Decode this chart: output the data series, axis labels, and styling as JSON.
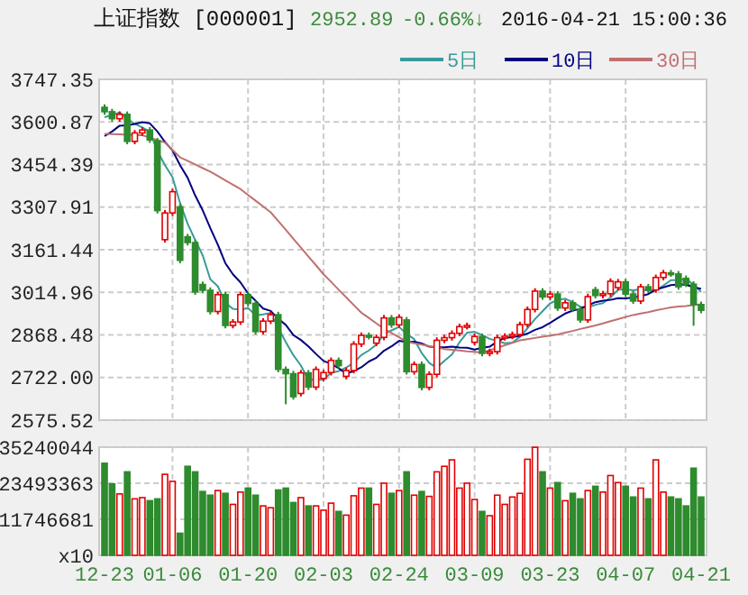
{
  "chart_data": [
    {
      "type": "candlestick",
      "title": "上证指数 [000001]",
      "annotations": [
        "2952.89",
        "-0.66%↓",
        "2016-04-21 15:00:36"
      ],
      "ohlc": [
        [
          3651,
          3661,
          3626,
          3636
        ],
        [
          3636,
          3646,
          3602,
          3612
        ],
        [
          3612,
          3637,
          3602,
          3627
        ],
        [
          3627,
          3637,
          3524,
          3534
        ],
        [
          3534,
          3573,
          3524,
          3563
        ],
        [
          3563,
          3583,
          3553,
          3573
        ],
        [
          3573,
          3583,
          3529,
          3539
        ],
        [
          3536,
          3546,
          3286,
          3296
        ],
        [
          3196,
          3298,
          3186,
          3288
        ],
        [
          3288,
          3371,
          3278,
          3361
        ],
        [
          3309,
          3319,
          3115,
          3125
        ],
        [
          3206,
          3216,
          3176,
          3186
        ],
        [
          3186,
          3196,
          3006,
          3016
        ],
        [
          3042,
          3052,
          3012,
          3022
        ],
        [
          3022,
          3032,
          2939,
          2949
        ],
        [
          2949,
          3017,
          2939,
          3007
        ],
        [
          3007,
          3017,
          2891,
          2901
        ],
        [
          2901,
          2923,
          2891,
          2913
        ],
        [
          2913,
          3017,
          2903,
          3007
        ],
        [
          3007,
          3017,
          2967,
          2977
        ],
        [
          2977,
          2987,
          2870,
          2880
        ],
        [
          2880,
          2926,
          2870,
          2916
        ],
        [
          2916,
          2948,
          2906,
          2938
        ],
        [
          2938,
          2948,
          2740,
          2750
        ],
        [
          2750,
          2760,
          2630,
          2735
        ],
        [
          2735,
          2745,
          2646,
          2656
        ],
        [
          2667,
          2748,
          2657,
          2738
        ],
        [
          2738,
          2748,
          2679,
          2689
        ],
        [
          2689,
          2760,
          2679,
          2750
        ],
        [
          2719,
          2749,
          2709,
          2739
        ],
        [
          2739,
          2791,
          2729,
          2781
        ],
        [
          2781,
          2791,
          2753,
          2763
        ],
        [
          2726,
          2756,
          2716,
          2746
        ],
        [
          2746,
          2847,
          2736,
          2837
        ],
        [
          2837,
          2877,
          2827,
          2867
        ],
        [
          2867,
          2877,
          2853,
          2863
        ],
        [
          2840,
          2870,
          2830,
          2860
        ],
        [
          2860,
          2937,
          2850,
          2927
        ],
        [
          2927,
          2937,
          2893,
          2903
        ],
        [
          2903,
          2939,
          2893,
          2929
        ],
        [
          2920,
          2930,
          2732,
          2742
        ],
        [
          2742,
          2777,
          2732,
          2767
        ],
        [
          2767,
          2777,
          2678,
          2688
        ],
        [
          2688,
          2743,
          2678,
          2733
        ],
        [
          2733,
          2860,
          2723,
          2850
        ],
        [
          2850,
          2869,
          2840,
          2859
        ],
        [
          2859,
          2884,
          2849,
          2874
        ],
        [
          2874,
          2907,
          2864,
          2897
        ],
        [
          2897,
          2911,
          2887,
          2901
        ],
        [
          2843,
          2873,
          2833,
          2863
        ],
        [
          2863,
          2873,
          2795,
          2805
        ],
        [
          2805,
          2821,
          2795,
          2811
        ],
        [
          2811,
          2869,
          2801,
          2859
        ],
        [
          2859,
          2874,
          2849,
          2864
        ],
        [
          2864,
          2880,
          2854,
          2870
        ],
        [
          2870,
          2914,
          2860,
          2904
        ],
        [
          2904,
          2966,
          2894,
          2956
        ],
        [
          2956,
          3029,
          2946,
          3019
        ],
        [
          3019,
          3029,
          2989,
          2999
        ],
        [
          2999,
          3019,
          2989,
          3009
        ],
        [
          3009,
          3019,
          2951,
          2961
        ],
        [
          2961,
          2989,
          2951,
          2979
        ],
        [
          2979,
          2989,
          2947,
          2957
        ],
        [
          2957,
          2967,
          2910,
          2920
        ],
        [
          2920,
          3010,
          2910,
          3000
        ],
        [
          3024,
          3034,
          2994,
          3004
        ],
        [
          3004,
          3020,
          2994,
          3010
        ],
        [
          3010,
          3063,
          3000,
          3053
        ],
        [
          3031,
          3061,
          3021,
          3051
        ],
        [
          3051,
          3061,
          2999,
          3009
        ],
        [
          3009,
          3019,
          2975,
          2985
        ],
        [
          2985,
          3044,
          2975,
          3034
        ],
        [
          3034,
          3044,
          3013,
          3023
        ],
        [
          3023,
          3076,
          3013,
          3066
        ],
        [
          3066,
          3092,
          3056,
          3082
        ],
        [
          3082,
          3092,
          3068,
          3078
        ],
        [
          3078,
          3088,
          3024,
          3034
        ],
        [
          3063,
          3073,
          3033,
          3043
        ],
        [
          3043,
          3053,
          2900,
          2973
        ],
        [
          2973,
          2983,
          2943,
          2953
        ]
      ],
      "colors": [
        "#2e8b2e",
        "#2e8b2e",
        "#e00000",
        "#2e8b2e",
        "#e00000",
        "#e00000",
        "#2e8b2e",
        "#2e8b2e",
        "#e00000",
        "#e00000",
        "#2e8b2e",
        "#2e8b2e",
        "#2e8b2e",
        "#2e8b2e",
        "#2e8b2e",
        "#e00000",
        "#2e8b2e",
        "#e00000",
        "#e00000",
        "#2e8b2e",
        "#2e8b2e",
        "#e00000",
        "#e00000",
        "#2e8b2e",
        "#2e8b2e",
        "#2e8b2e",
        "#e00000",
        "#2e8b2e",
        "#e00000",
        "#e00000",
        "#e00000",
        "#2e8b2e",
        "#e00000",
        "#e00000",
        "#e00000",
        "#2e8b2e",
        "#e00000",
        "#e00000",
        "#2e8b2e",
        "#e00000",
        "#2e8b2e",
        "#e00000",
        "#2e8b2e",
        "#e00000",
        "#e00000",
        "#e00000",
        "#e00000",
        "#e00000",
        "#e00000",
        "#e00000",
        "#2e8b2e",
        "#e00000",
        "#e00000",
        "#e00000",
        "#e00000",
        "#e00000",
        "#e00000",
        "#e00000",
        "#2e8b2e",
        "#e00000",
        "#2e8b2e",
        "#e00000",
        "#2e8b2e",
        "#2e8b2e",
        "#e00000",
        "#2e8b2e",
        "#e00000",
        "#e00000",
        "#e00000",
        "#2e8b2e",
        "#2e8b2e",
        "#e00000",
        "#2e8b2e",
        "#e00000",
        "#e00000",
        "#2e8b2e",
        "#2e8b2e",
        "#2e8b2e",
        "#2e8b2e",
        "#2e8b2e"
      ],
      "series": [
        {
          "name": "5日",
          "type": "line",
          "color": "#3a9a9a",
          "values": [
            3617,
            3624,
            3634,
            3612,
            3594,
            3582,
            3567,
            3501,
            3452,
            3411,
            3322,
            3251,
            3195,
            3142,
            3060,
            3036,
            2979,
            2958,
            2955,
            2961,
            2936,
            2939,
            2944,
            2892,
            2844,
            2799,
            2763,
            2714,
            2714,
            2714,
            2739,
            2744,
            2756,
            2773,
            2799,
            2815,
            2835,
            2871,
            2884,
            2896,
            2872,
            2854,
            2806,
            2772,
            2756,
            2779,
            2801,
            2843,
            2876,
            2879,
            2868,
            2855,
            2848,
            2840,
            2842,
            2862,
            2891,
            2923,
            2950,
            2977,
            2989,
            2993,
            2981,
            2965,
            2963,
            2972,
            2978,
            2997,
            3024,
            3025,
            3022,
            3026,
            3020,
            3023,
            3038,
            3057,
            3057,
            3061,
            3042,
            3016
          ]
        },
        {
          "name": "10日",
          "type": "line",
          "color": "#000080",
          "values": [
            3552,
            3568,
            3588,
            3589,
            3594,
            3600,
            3596,
            3568,
            3532,
            3503,
            3452,
            3409,
            3348,
            3297,
            3236,
            3179,
            3115,
            3077,
            3049,
            3011,
            2986,
            2959,
            2951,
            2924,
            2903,
            2868,
            2851,
            2829,
            2803,
            2779,
            2769,
            2754,
            2735,
            2744,
            2757,
            2777,
            2790,
            2814,
            2829,
            2848,
            2844,
            2845,
            2839,
            2828,
            2826,
            2826,
            2828,
            2825,
            2824,
            2818,
            2824,
            2828,
            2846,
            2858,
            2861,
            2865,
            2873,
            2886,
            2895,
            2910,
            2926,
            2942,
            2952,
            2958,
            2970,
            2981,
            2986,
            2989,
            2995,
            2994,
            2997,
            3002,
            3009,
            3024,
            3032,
            3040,
            3042,
            3041,
            3033,
            3027
          ]
        },
        {
          "name": "30日",
          "type": "line",
          "color": "#c07070",
          "values": [
            3560,
            3559,
            3558,
            3557,
            3556,
            3555,
            3547,
            3538,
            3530,
            3505,
            3479,
            3467,
            3455,
            3442,
            3430,
            3415,
            3400,
            3385,
            3370,
            3350,
            3330,
            3310,
            3290,
            3260,
            3230,
            3199,
            3169,
            3138,
            3108,
            3077,
            3051,
            3024,
            2998,
            2971,
            2945,
            2927,
            2908,
            2890,
            2875,
            2860,
            2845,
            2840,
            2835,
            2830,
            2825,
            2820,
            2817,
            2815,
            2812,
            2810,
            2807,
            2816,
            2824,
            2833,
            2841,
            2850,
            2854,
            2858,
            2862,
            2866,
            2870,
            2876,
            2882,
            2889,
            2895,
            2901,
            2908,
            2916,
            2923,
            2930,
            2937,
            2942,
            2947,
            2953,
            2958,
            2963,
            2966,
            2968,
            2971,
            2974
          ]
        }
      ],
      "ylim": [
        2575.52,
        3747.35
      ],
      "yticks": [
        2575.52,
        {
          "value": 2722,
          "label": "2722.00"
        },
        2868.48,
        3014.96,
        3161.44,
        3307.91,
        3454.39,
        3600.87,
        3747.35
      ],
      "grid": true,
      "legend": "top right",
      "tick_labels": "y"
    },
    {
      "type": "bar",
      "categories": [
        "12-23",
        null,
        null,
        null,
        null,
        null,
        null,
        null,
        null,
        "01-06",
        null,
        null,
        null,
        null,
        null,
        null,
        null,
        null,
        null,
        "01-20",
        null,
        null,
        null,
        null,
        null,
        null,
        null,
        null,
        null,
        "02-03",
        null,
        null,
        null,
        null,
        null,
        null,
        null,
        null,
        null,
        "02-24",
        null,
        null,
        null,
        null,
        null,
        null,
        null,
        null,
        null,
        "03-09",
        null,
        null,
        null,
        null,
        null,
        null,
        null,
        null,
        null,
        "03-23",
        null,
        null,
        null,
        null,
        null,
        null,
        null,
        null,
        null,
        "04-07",
        null,
        null,
        null,
        null,
        null,
        null,
        null,
        null,
        null,
        "04-21"
      ],
      "values": [
        30000000,
        23300000,
        20000000,
        27200000,
        18400000,
        18800000,
        17800000,
        18400000,
        26400000,
        24100000,
        7200000,
        29000000,
        27200000,
        20800000,
        19600000,
        21100000,
        20200000,
        16600000,
        20600000,
        21900000,
        19600000,
        16100000,
        15500000,
        21300000,
        21900000,
        17200000,
        18800000,
        16100000,
        16100000,
        14700000,
        17000000,
        14300000,
        13100000,
        19400000,
        21900000,
        21900000,
        16600000,
        23500000,
        20200000,
        21100000,
        27200000,
        19600000,
        20800000,
        19200000,
        27200000,
        29000000,
        31100000,
        21900000,
        23500000,
        18200000,
        14300000,
        12900000,
        19600000,
        16600000,
        19000000,
        20200000,
        31300000,
        35200000,
        27200000,
        21900000,
        23700000,
        17800000,
        20200000,
        18400000,
        21100000,
        22500000,
        20600000,
        26000000,
        23700000,
        22500000,
        19000000,
        21900000,
        18400000,
        31100000,
        20600000,
        19000000,
        18400000,
        16100000,
        28400000,
        19000000
      ],
      "colors": [
        "#2e8b2e",
        "#2e8b2e",
        "#e00000",
        "#2e8b2e",
        "#e00000",
        "#e00000",
        "#2e8b2e",
        "#2e8b2e",
        "#e00000",
        "#e00000",
        "#2e8b2e",
        "#2e8b2e",
        "#2e8b2e",
        "#2e8b2e",
        "#2e8b2e",
        "#e00000",
        "#2e8b2e",
        "#e00000",
        "#e00000",
        "#2e8b2e",
        "#2e8b2e",
        "#e00000",
        "#e00000",
        "#2e8b2e",
        "#2e8b2e",
        "#2e8b2e",
        "#e00000",
        "#2e8b2e",
        "#e00000",
        "#e00000",
        "#e00000",
        "#2e8b2e",
        "#e00000",
        "#e00000",
        "#e00000",
        "#2e8b2e",
        "#e00000",
        "#e00000",
        "#2e8b2e",
        "#e00000",
        "#2e8b2e",
        "#e00000",
        "#2e8b2e",
        "#e00000",
        "#e00000",
        "#e00000",
        "#e00000",
        "#e00000",
        "#e00000",
        "#e00000",
        "#2e8b2e",
        "#e00000",
        "#e00000",
        "#e00000",
        "#e00000",
        "#e00000",
        "#e00000",
        "#e00000",
        "#2e8b2e",
        "#e00000",
        "#2e8b2e",
        "#e00000",
        "#2e8b2e",
        "#2e8b2e",
        "#e00000",
        "#2e8b2e",
        "#e00000",
        "#e00000",
        "#e00000",
        "#2e8b2e",
        "#2e8b2e",
        "#e00000",
        "#2e8b2e",
        "#e00000",
        "#e00000",
        "#2e8b2e",
        "#2e8b2e",
        "#2e8b2e",
        "#2e8b2e",
        "#2e8b2e"
      ],
      "ylim": [
        0,
        35240044
      ],
      "yticks": [
        {
          "value": 0,
          "label": "x10"
        },
        11746681,
        23493363,
        35240044
      ],
      "grid": true
    }
  ]
}
